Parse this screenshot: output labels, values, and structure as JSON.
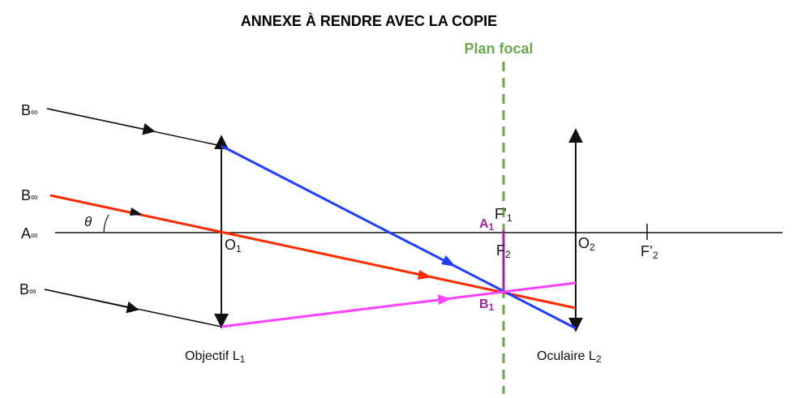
{
  "title": "ANNEXE À RENDRE AVEC LA COPIE",
  "focal_plane_label": "Plan focal",
  "labels": {
    "b_inf": "B",
    "a_inf": "A",
    "inf": "∞",
    "theta": "θ",
    "o1": "O",
    "o1_sub": "1",
    "o2": "O",
    "o2_sub": "2",
    "f1p": "F’",
    "f1p_sub": "1",
    "f2": "F",
    "f2_sub": "2",
    "f2p": "F’",
    "f2p_sub": "2",
    "a1": "A",
    "a1_sub": "1",
    "b1": "B",
    "b1_sub": "1",
    "objectif": "Objectif L",
    "objectif_sub": "1",
    "oculaire": "Oculaire L",
    "oculaire_sub": "2"
  },
  "colors": {
    "blue": "#1f3fff",
    "red": "#ff2a00",
    "pink": "#ff40ff",
    "purple": "#9b2a9b",
    "green": "#6aa84f"
  }
}
